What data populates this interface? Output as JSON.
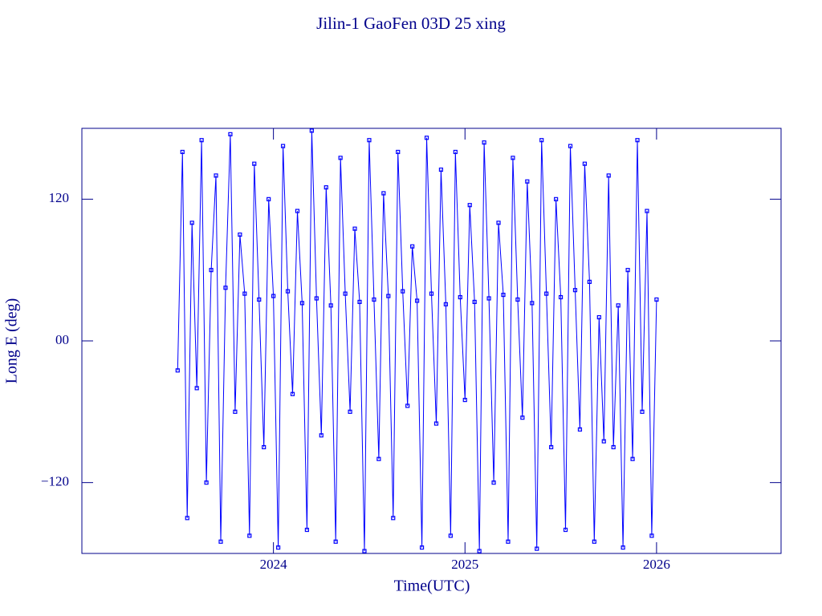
{
  "chart_data": {
    "type": "line",
    "title": "Jilin-1 GaoFen 03D 25 xing",
    "xlabel": "Time(UTC)",
    "ylabel": "Long E (deg)",
    "color": "#0000ff",
    "xlim": [
      2023.0,
      2026.65
    ],
    "ylim": [
      -180,
      180
    ],
    "xticks": [
      2024,
      2025,
      2026
    ],
    "yticks": [
      {
        "value": -120,
        "label": "−120"
      },
      {
        "value": 0,
        "label": "00"
      },
      120
    ],
    "series": [
      {
        "name": "Long E",
        "color": "#0000ff",
        "x": [
          2023.5,
          2023.525,
          2023.55,
          2023.575,
          2023.6,
          2023.625,
          2023.65,
          2023.675,
          2023.7,
          2023.725,
          2023.75,
          2023.775,
          2023.8,
          2023.825,
          2023.85,
          2023.875,
          2023.9,
          2023.925,
          2023.95,
          2023.975,
          2024.0,
          2024.025,
          2024.05,
          2024.075,
          2024.1,
          2024.125,
          2024.15,
          2024.175,
          2024.2,
          2024.225,
          2024.25,
          2024.275,
          2024.3,
          2024.325,
          2024.35,
          2024.375,
          2024.4,
          2024.425,
          2024.45,
          2024.475,
          2024.5,
          2024.525,
          2024.55,
          2024.575,
          2024.6,
          2024.625,
          2024.65,
          2024.675,
          2024.7,
          2024.725,
          2024.75,
          2024.775,
          2024.8,
          2024.825,
          2024.85,
          2024.875,
          2024.9,
          2024.925,
          2024.95,
          2024.975,
          2025.0,
          2025.025,
          2025.05,
          2025.075,
          2025.1,
          2025.125,
          2025.15,
          2025.175,
          2025.2,
          2025.225,
          2025.25,
          2025.275,
          2025.3,
          2025.325,
          2025.35,
          2025.375,
          2025.4,
          2025.425,
          2025.45,
          2025.475,
          2025.5,
          2025.525,
          2025.55,
          2025.575,
          2025.6,
          2025.625,
          2025.65,
          2025.675,
          2025.7,
          2025.725,
          2025.75,
          2025.775,
          2025.8,
          2025.825,
          2025.85,
          2025.875,
          2025.9,
          2025.925,
          2025.95,
          2025.975,
          2026.0
        ],
        "values": [
          -25,
          160,
          -150,
          100,
          -40,
          170,
          -120,
          60,
          140,
          -170,
          45,
          175,
          -60,
          90,
          40,
          -165,
          150,
          35,
          -90,
          120,
          38,
          -175,
          165,
          42,
          -45,
          110,
          32,
          -160,
          178,
          36,
          -80,
          130,
          30,
          -170,
          155,
          40,
          -60,
          95,
          33,
          -178,
          170,
          35,
          -100,
          125,
          38,
          -150,
          160,
          42,
          -55,
          80,
          34,
          -175,
          172,
          40,
          -70,
          145,
          31,
          -165,
          160,
          37,
          -50,
          115,
          33,
          -178,
          168,
          36,
          -120,
          100,
          39,
          -170,
          155,
          35,
          -65,
          135,
          32,
          -176,
          170,
          40,
          -90,
          120,
          37,
          -160,
          165,
          43,
          -75,
          150,
          50,
          -170,
          20,
          -85,
          140,
          -90,
          30,
          -175,
          60,
          -100,
          170,
          -60,
          110,
          -165,
          35
        ]
      }
    ]
  }
}
